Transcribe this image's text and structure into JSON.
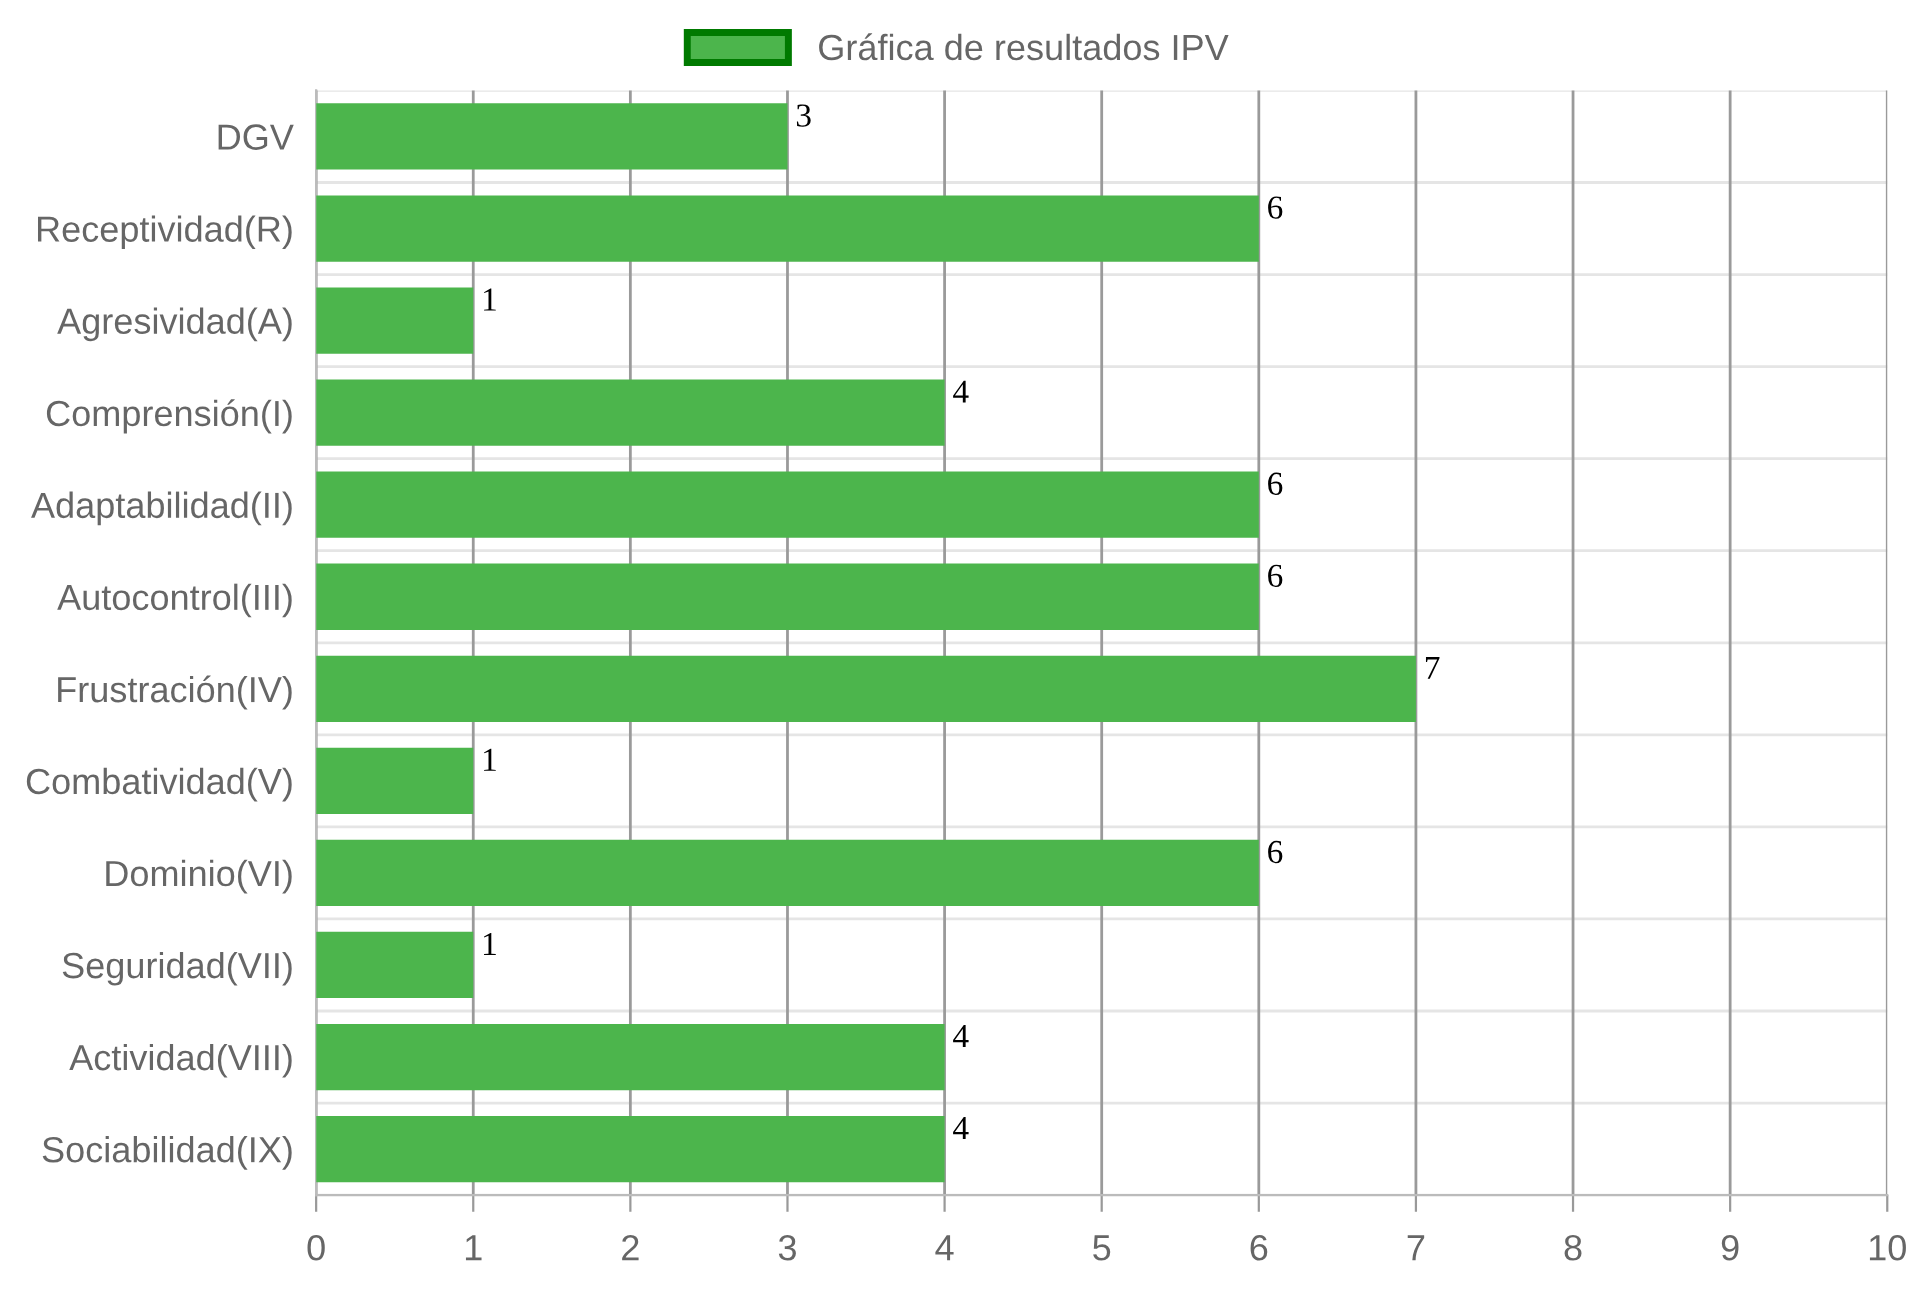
{
  "chart_data": {
    "type": "bar",
    "orientation": "horizontal",
    "categories": [
      "DGV",
      "Receptividad(R)",
      "Agresividad(A)",
      "Comprensión(I)",
      "Adaptabilidad(II)",
      "Autocontrol(III)",
      "Frustración(IV)",
      "Combatividad(V)",
      "Dominio(VI)",
      "Seguridad(VII)",
      "Actividad(VIII)",
      "Sociabilidad(IX)"
    ],
    "series": [
      {
        "name": "Gráfica de resultados IPV",
        "color": "#4cb54c",
        "values": [
          3,
          6,
          1,
          4,
          6,
          6,
          7,
          1,
          6,
          1,
          4,
          4
        ]
      }
    ],
    "xlim": [
      0,
      10
    ],
    "xticks": [
      0,
      1,
      2,
      3,
      4,
      5,
      6,
      7,
      8,
      9,
      10
    ],
    "grid": true,
    "legend": "top",
    "data_labels": true
  }
}
